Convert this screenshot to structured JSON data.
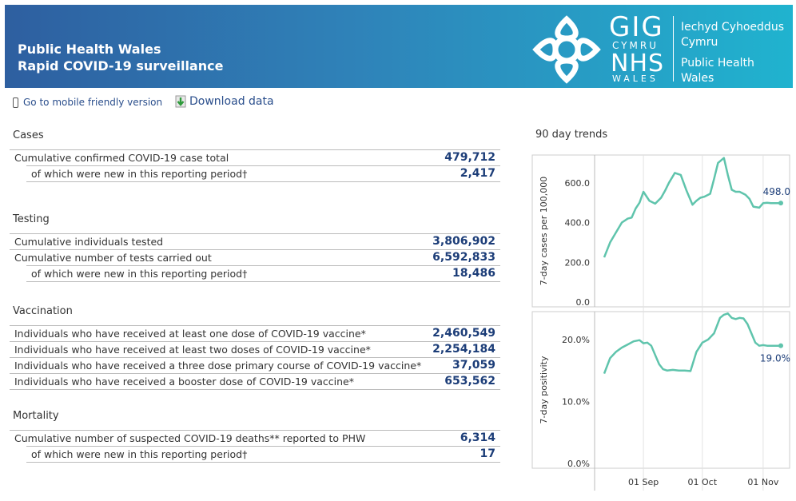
{
  "header": {
    "title_line1": "Public Health Wales",
    "title_line2": "Rapid COVID-19 surveillance",
    "logo": {
      "gig": "GIG",
      "cymru": "CYMRU",
      "nhs": "NHS",
      "wales": "WALES",
      "org_welsh_1": "Iechyd Cyhoeddus",
      "org_welsh_2": "Cymru",
      "org_english_1": "Public Health",
      "org_english_2": "Wales"
    }
  },
  "toolbar": {
    "mobile_link": "Go to mobile friendly version",
    "download_link": "Download data"
  },
  "sections": {
    "cases": {
      "title": "Cases",
      "rows": [
        {
          "label": "Cumulative confirmed COVID-19 case total",
          "value": "479,712"
        },
        {
          "label": "of which were new in this reporting period†",
          "value": "2,417"
        }
      ]
    },
    "testing": {
      "title": "Testing",
      "rows": [
        {
          "label": "Cumulative individuals tested",
          "value": "3,806,902"
        },
        {
          "label": "Cumulative number of tests carried out",
          "value": "6,592,833"
        },
        {
          "label": "of which were new in this reporting period†",
          "value": "18,486"
        }
      ]
    },
    "vaccination": {
      "title": "Vaccination",
      "rows": [
        {
          "label": "Individuals who have received at least one dose of COVID-19 vaccine*",
          "value": "2,460,549"
        },
        {
          "label": "Individuals who have received at least two doses of COVID-19 vaccine*",
          "value": "2,254,184"
        },
        {
          "label": "Individuals who have received a three dose primary course of COVID-19 vaccine*",
          "value": "37,059"
        },
        {
          "label": "Individuals who have received a booster dose of COVID-19 vaccine*",
          "value": "653,562"
        }
      ]
    },
    "mortality": {
      "title": "Mortality",
      "rows": [
        {
          "label": "Cumulative number of suspected COVID-19 deaths** reported to PHW",
          "value": "6,314"
        },
        {
          "label": "of which were new in this reporting period†",
          "value": "17"
        }
      ]
    }
  },
  "chart_data": {
    "title": "90 day trends",
    "type": "line",
    "line_color": "#5fc4ac",
    "x_ticks": [
      "01 Sep",
      "01 Oct",
      "01 Nov"
    ],
    "x_tick_days": [
      20,
      50,
      81
    ],
    "x_range_days": [
      0,
      90
    ],
    "panels": [
      {
        "ylabel": "7-day cases per 100,000",
        "y_ticks": [
          "600.0",
          "400.0",
          "200.0",
          "0.0"
        ],
        "y_tick_values": [
          600,
          400,
          200,
          0
        ],
        "ylim": [
          0,
          740
        ],
        "last_label": "498.0",
        "x": [
          0,
          3,
          6,
          9,
          12,
          14,
          16,
          18,
          20,
          23,
          26,
          29,
          31,
          33,
          36,
          39,
          42,
          45,
          47,
          49,
          51,
          54,
          56,
          58,
          61,
          63,
          65,
          67,
          69,
          70,
          72,
          74,
          76,
          79,
          81,
          83,
          85,
          87,
          88,
          90
        ],
        "values": [
          225,
          300,
          350,
          400,
          420,
          425,
          470,
          500,
          555,
          510,
          495,
          525,
          560,
          600,
          650,
          640,
          560,
          490,
          510,
          525,
          530,
          545,
          620,
          700,
          725,
          640,
          565,
          555,
          555,
          550,
          540,
          520,
          480,
          475,
          498,
          500,
          498,
          498,
          498,
          498
        ]
      },
      {
        "ylabel": "7-day positivity",
        "y_ticks": [
          "20.0%",
          "10.0%",
          "0.0%"
        ],
        "y_tick_values": [
          20,
          10,
          0
        ],
        "ylim": [
          0,
          24.5
        ],
        "last_label": "19.0%",
        "x": [
          0,
          3,
          6,
          9,
          12,
          15,
          18,
          20,
          22,
          24,
          26,
          28,
          30,
          32,
          35,
          38,
          41,
          44,
          47,
          50,
          53,
          56,
          59,
          61,
          63,
          65,
          67,
          69,
          71,
          73,
          75,
          77,
          79,
          81,
          83,
          85,
          87,
          88,
          90
        ],
        "values": [
          14.5,
          17,
          18,
          18.7,
          19.2,
          19.7,
          19.9,
          19.4,
          19.5,
          19.0,
          17.5,
          16,
          15.2,
          15.0,
          15.1,
          15.0,
          15.0,
          14.9,
          18,
          19.5,
          20,
          21,
          23.5,
          24,
          24.2,
          23.5,
          23.3,
          23.5,
          23.4,
          22.5,
          21,
          19.5,
          19.0,
          19.1,
          19.0,
          19.0,
          19.0,
          19.0,
          19.0
        ]
      }
    ]
  }
}
